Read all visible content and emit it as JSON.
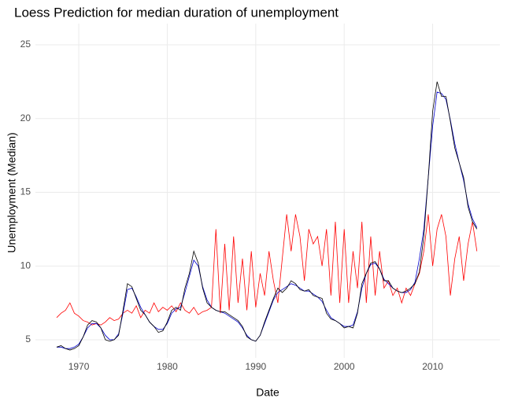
{
  "chart_data": {
    "type": "line",
    "title": "Loess Prediction for median duration of unemployment",
    "x_label": "Date",
    "y_label": "Unemployment (Median)",
    "x": [
      1967.5,
      1968,
      1968.5,
      1969,
      1969.5,
      1970,
      1970.5,
      1971,
      1971.5,
      1972,
      1972.5,
      1973,
      1973.5,
      1974,
      1974.5,
      1975,
      1975.5,
      1976,
      1976.5,
      1977,
      1977.5,
      1978,
      1978.5,
      1979,
      1979.5,
      1980,
      1980.5,
      1981,
      1981.5,
      1982,
      1982.5,
      1983,
      1983.5,
      1984,
      1984.5,
      1985,
      1985.5,
      1986,
      1986.5,
      1987,
      1987.5,
      1988,
      1988.5,
      1989,
      1989.5,
      1990,
      1990.5,
      1991,
      1991.5,
      1992,
      1992.5,
      1993,
      1993.5,
      1994,
      1994.5,
      1995,
      1995.5,
      1996,
      1996.5,
      1997,
      1997.5,
      1998,
      1998.5,
      1999,
      1999.5,
      2000,
      2000.5,
      2001,
      2001.5,
      2002,
      2002.5,
      2003,
      2003.5,
      2004,
      2004.5,
      2005,
      2005.5,
      2006,
      2006.5,
      2007,
      2007.5,
      2008,
      2008.5,
      2009,
      2009.5,
      2010,
      2010.5,
      2011,
      2011.5,
      2012,
      2012.5,
      2013,
      2013.5,
      2014,
      2014.5,
      2015
    ],
    "series": [
      {
        "color": "#ff0000",
        "values": [
          6.5,
          6.8,
          7.0,
          7.5,
          6.8,
          6.6,
          6.3,
          6.2,
          6.0,
          6.1,
          6.0,
          6.2,
          6.5,
          6.3,
          6.4,
          6.8,
          7.0,
          6.8,
          7.3,
          6.5,
          7.0,
          6.8,
          7.5,
          6.9,
          7.2,
          7.0,
          7.3,
          6.9,
          7.5,
          7.0,
          6.8,
          7.2,
          6.7,
          6.9,
          7.0,
          7.2,
          12.5,
          6.8,
          11.5,
          7.0,
          12.0,
          7.5,
          10.5,
          7.0,
          11.0,
          7.2,
          9.5,
          8.0,
          11.0,
          9.0,
          7.5,
          10.5,
          13.5,
          11.0,
          13.5,
          12.0,
          9.0,
          12.5,
          11.5,
          12.0,
          10.0,
          12.5,
          8.0,
          13.0,
          7.5,
          12.5,
          7.5,
          11.0,
          8.5,
          13.0,
          7.5,
          12.0,
          8.0,
          11.0,
          8.5,
          9.0,
          8.0,
          8.5,
          7.5,
          8.5,
          8.0,
          8.8,
          9.5,
          11.0,
          13.5,
          10.0,
          12.5,
          13.5,
          12.0,
          8.0,
          10.5,
          12.0,
          9.0,
          11.5,
          13.0,
          11.0
        ]
      },
      {
        "color": "#0000cc",
        "values": [
          4.5,
          4.5,
          4.4,
          4.4,
          4.5,
          4.7,
          5.2,
          5.8,
          6.1,
          6.1,
          5.8,
          5.3,
          5.0,
          5.0,
          5.4,
          6.8,
          8.4,
          8.5,
          7.9,
          7.2,
          6.7,
          6.2,
          5.9,
          5.7,
          5.7,
          6.1,
          6.8,
          7.1,
          7.2,
          8.2,
          9.3,
          10.4,
          10.0,
          8.6,
          7.7,
          7.2,
          7.0,
          6.9,
          6.8,
          6.6,
          6.4,
          6.2,
          5.8,
          5.3,
          5.0,
          4.9,
          5.3,
          6.1,
          6.9,
          7.7,
          8.2,
          8.4,
          8.6,
          8.8,
          8.7,
          8.5,
          8.3,
          8.3,
          8.1,
          7.9,
          7.6,
          7.0,
          6.5,
          6.3,
          6.1,
          5.9,
          5.9,
          6.0,
          6.9,
          8.5,
          9.5,
          10.1,
          10.2,
          9.8,
          9.1,
          8.8,
          8.5,
          8.3,
          8.2,
          8.2,
          8.4,
          8.9,
          10.5,
          12.5,
          16.0,
          19.5,
          21.8,
          21.7,
          21.3,
          19.9,
          18.3,
          17.0,
          15.8,
          14.2,
          13.2,
          12.6
        ]
      },
      {
        "color": "#000000",
        "values": [
          4.5,
          4.6,
          4.4,
          4.3,
          4.4,
          4.6,
          5.2,
          6.0,
          6.3,
          6.2,
          5.8,
          5.0,
          4.9,
          5.0,
          5.3,
          7.0,
          8.8,
          8.6,
          7.8,
          7.0,
          6.7,
          6.2,
          5.9,
          5.5,
          5.6,
          6.2,
          7.0,
          7.2,
          7.0,
          8.5,
          9.5,
          11.0,
          10.2,
          8.5,
          7.5,
          7.2,
          7.0,
          6.9,
          6.9,
          6.7,
          6.5,
          6.3,
          5.9,
          5.2,
          5.0,
          4.9,
          5.3,
          6.2,
          7.0,
          7.8,
          8.5,
          8.2,
          8.5,
          9.0,
          8.8,
          8.4,
          8.3,
          8.4,
          8.0,
          7.9,
          7.8,
          6.8,
          6.4,
          6.3,
          6.1,
          5.8,
          5.9,
          5.8,
          6.8,
          8.8,
          9.5,
          10.2,
          10.3,
          9.8,
          9.0,
          9.0,
          8.5,
          8.3,
          8.2,
          8.3,
          8.5,
          8.8,
          9.6,
          12.0,
          16.0,
          20.5,
          22.5,
          21.5,
          21.5,
          19.8,
          18.0,
          17.0,
          16.0,
          14.0,
          13.0,
          12.5
        ]
      }
    ],
    "xlim": [
      1965.1,
      2017.6
    ],
    "xticks": [
      1970,
      1980,
      1990,
      2000,
      2010
    ],
    "ylim": [
      3.77,
      26.44
    ],
    "yticks": [
      5,
      10,
      15,
      20,
      25
    ],
    "grid": true
  }
}
